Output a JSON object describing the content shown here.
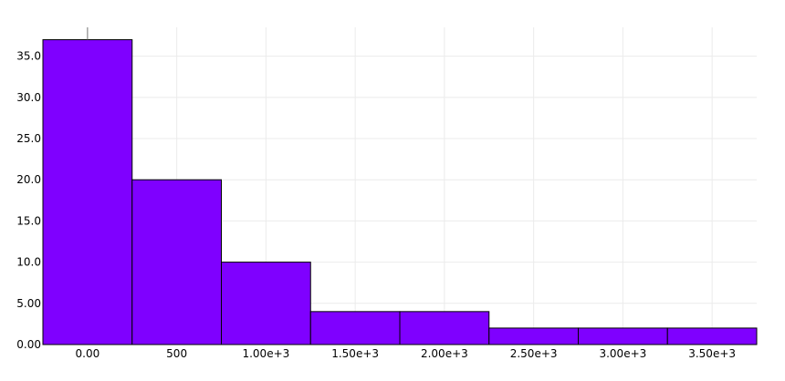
{
  "chart_data": {
    "type": "bar",
    "histogram": true,
    "bin_edges": [
      -250,
      250,
      750,
      1250,
      1750,
      2250,
      2750,
      3250,
      3750
    ],
    "values": [
      37,
      20,
      10,
      4,
      4,
      2,
      2,
      2
    ],
    "xlim": [
      -250,
      3750
    ],
    "ylim": [
      0,
      38.5
    ],
    "x_ticks": [
      {
        "value": 0,
        "label": "0.00"
      },
      {
        "value": 500,
        "label": "500"
      },
      {
        "value": 1000,
        "label": "1.00e+3"
      },
      {
        "value": 1500,
        "label": "1.50e+3"
      },
      {
        "value": 2000,
        "label": "2.00e+3"
      },
      {
        "value": 2500,
        "label": "2.50e+3"
      },
      {
        "value": 3000,
        "label": "3.00e+3"
      },
      {
        "value": 3500,
        "label": "3.50e+3"
      }
    ],
    "y_ticks": [
      {
        "value": 0,
        "label": "0.00"
      },
      {
        "value": 5,
        "label": "5.00"
      },
      {
        "value": 10,
        "label": "10.0"
      },
      {
        "value": 15,
        "label": "15.0"
      },
      {
        "value": 20,
        "label": "20.0"
      },
      {
        "value": 25,
        "label": "25.0"
      },
      {
        "value": 30,
        "label": "30.0"
      },
      {
        "value": 35,
        "label": "35.0"
      }
    ],
    "title": "",
    "xlabel": "",
    "ylabel": "",
    "grid": true,
    "legend": "none",
    "bar_color": "#7f00ff",
    "bar_edge_color": "#000000",
    "grid_color": "#ebebeb"
  }
}
